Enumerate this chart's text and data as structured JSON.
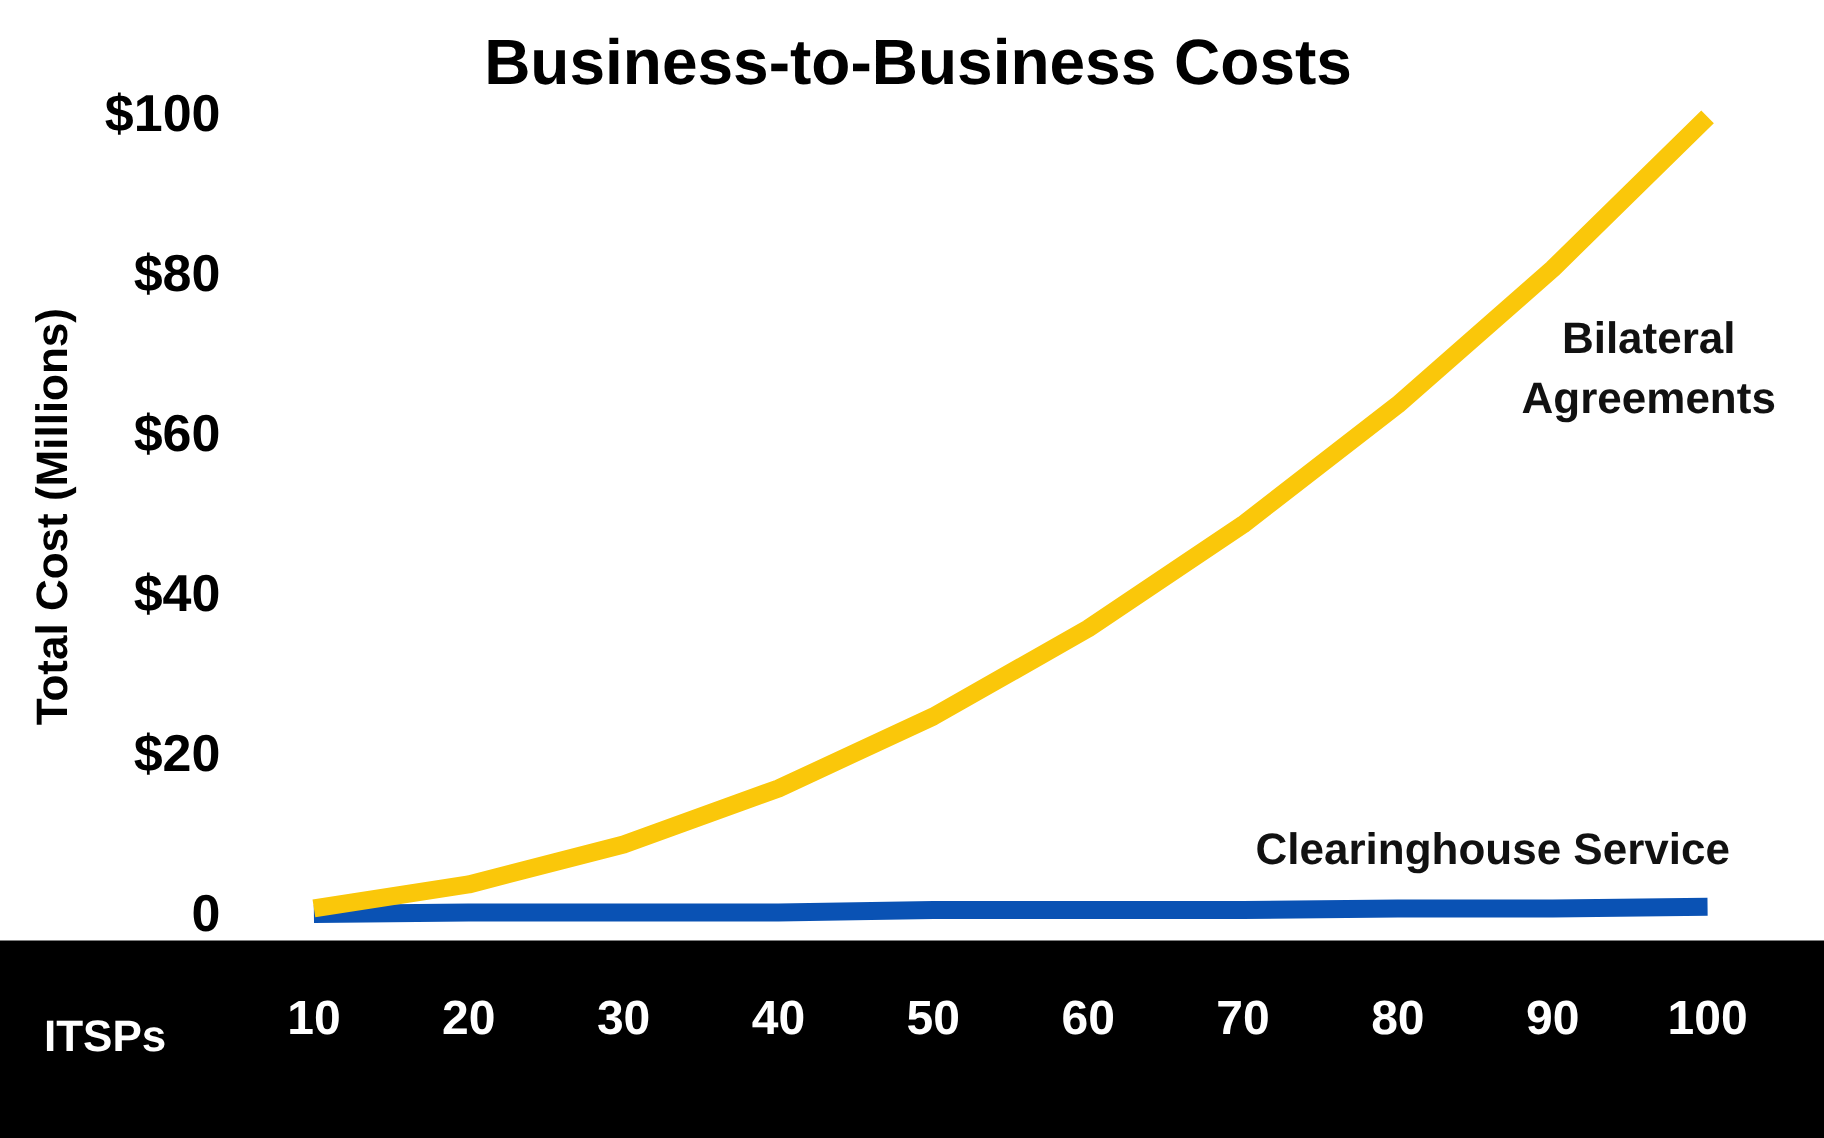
{
  "chart_data": {
    "type": "line",
    "title": "Business-to-Business Costs",
    "xlabel": "ITSPs",
    "ylabel": "Total Cost (Millions)",
    "categories": [
      "10",
      "20",
      "30",
      "40",
      "50",
      "60",
      "70",
      "80",
      "90",
      "100"
    ],
    "series": [
      {
        "name": "Bilateral Agreements",
        "color": "#fac70a",
        "values": [
          1,
          4,
          9,
          16,
          25,
          36,
          49,
          64,
          81,
          100
        ]
      },
      {
        "name": "Clearinghouse Service",
        "color": "#0a52b4",
        "values": [
          0.3,
          0.5,
          0.5,
          0.5,
          0.8,
          0.8,
          0.8,
          1,
          1,
          1.2
        ]
      }
    ],
    "ylim": [
      0,
      100
    ],
    "yticks": [
      {
        "value": 0,
        "label": "0"
      },
      {
        "value": 20,
        "label": "$20"
      },
      {
        "value": 40,
        "label": "$40"
      },
      {
        "value": 60,
        "label": "$60"
      },
      {
        "value": 80,
        "label": "$80"
      },
      {
        "value": 100,
        "label": "$100"
      }
    ],
    "grid": false,
    "legend": false,
    "marker": "none",
    "line_style": "solid"
  }
}
